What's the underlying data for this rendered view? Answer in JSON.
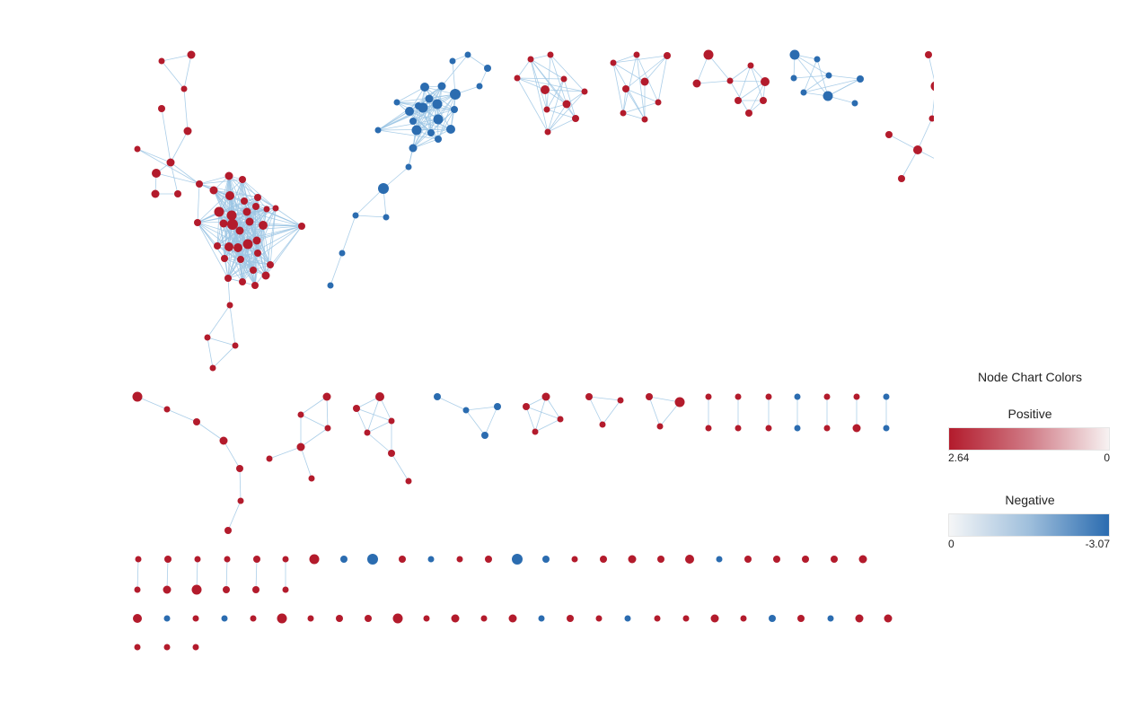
{
  "legend": {
    "title": "Node Chart Colors",
    "positive": {
      "label": "Positive",
      "min_label": "2.64",
      "max_label": "0",
      "color_strong": "#b31b2c",
      "color_weak": "#f7f2f2"
    },
    "negative": {
      "label": "Negative",
      "min_label": "0",
      "max_label": "-3.07",
      "color_weak": "#f5f6f7",
      "color_strong": "#2b6cb0"
    }
  },
  "colors": {
    "positive_node": "#b31b2c",
    "negative_node": "#2b6cb0",
    "edge": "#9cc6e4"
  },
  "network": {
    "node_count": 281,
    "description_sign": "nodes colored by sign of value: positive = red, negative = blue"
  }
}
